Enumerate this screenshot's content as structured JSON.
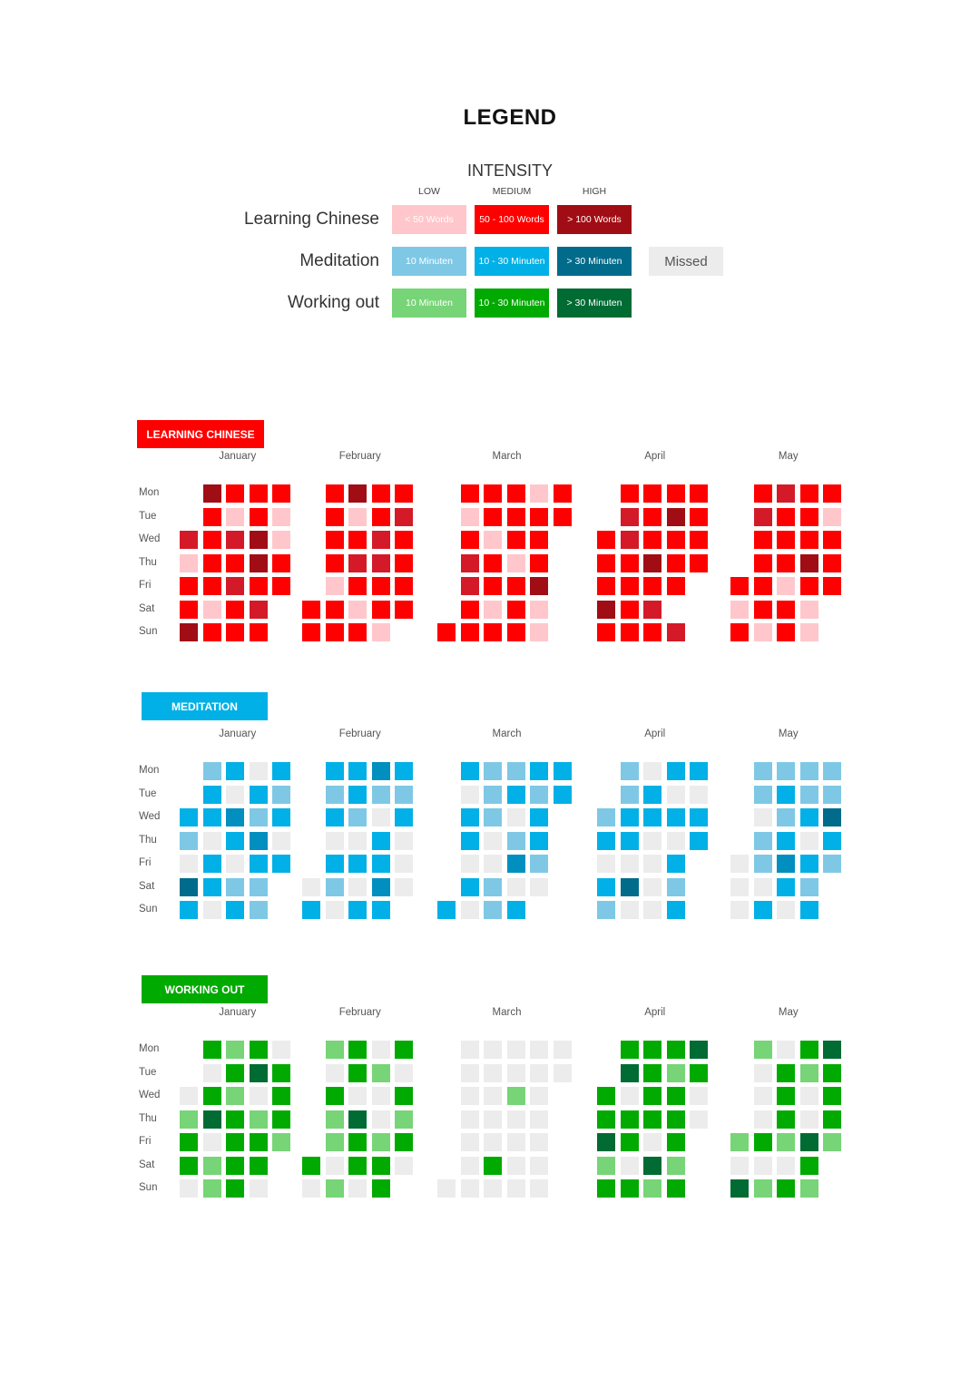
{
  "legend": {
    "title": "LEGEND",
    "intensity_title": "INTENSITY",
    "levels": [
      "LOW",
      "MEDIUM",
      "HIGH"
    ],
    "missed_label": "Missed",
    "missed_color": "#ececec",
    "rows": [
      {
        "label": "Learning Chinese",
        "colors": [
          "#ffc7cb",
          "#ff0000",
          "#a10d14"
        ],
        "texts": [
          "< 50 Words",
          "50 - 100 Words",
          "> 100 Words"
        ]
      },
      {
        "label": "Meditation",
        "colors": [
          "#7ec8e6",
          "#00b0e6",
          "#006b8a"
        ],
        "texts": [
          "10 Minuten",
          "10 - 30 Minuten",
          "> 30 Minuten"
        ]
      },
      {
        "label": "Working out",
        "colors": [
          "#77d477",
          "#00aa00",
          "#006b33"
        ],
        "texts": [
          "10 Minuten",
          "10 - 30 Minuten",
          "> 30 Minuten"
        ]
      }
    ]
  },
  "chart_data": {
    "type": "heatmap",
    "months": [
      "January",
      "February",
      "March",
      "April",
      "May"
    ],
    "days": [
      "Mon",
      "Tue",
      "Wed",
      "Thu",
      "Fri",
      "Sat",
      "Sun"
    ],
    "intensity_scale": {
      "0": "Missed",
      "1": "LOW",
      "2": "MEDIUM",
      "3": "HIGH"
    },
    "sections": [
      {
        "title": "LEARNING CHINESE",
        "colors": [
          "#ececec",
          "#ffc7cb",
          "#ff0000",
          "#a10d14"
        ],
        "mid_color": "#d41a28",
        "months": [
          {
            "month": "January",
            "weeks": [
              [
                null,
                null,
                2.5,
                1,
                2,
                2,
                3
              ],
              [
                3,
                2,
                2,
                2,
                2,
                1,
                2
              ],
              [
                2,
                1,
                2.5,
                2,
                2.5,
                2,
                2
              ],
              [
                2,
                2,
                3,
                3,
                2,
                2.5,
                2
              ],
              [
                2,
                1,
                1,
                2,
                2,
                null,
                null
              ]
            ]
          },
          {
            "month": "February",
            "weeks": [
              [
                null,
                null,
                null,
                null,
                null,
                2,
                2
              ],
              [
                2,
                2,
                2,
                2,
                1,
                2,
                2
              ],
              [
                3,
                1,
                2,
                2.5,
                2,
                1,
                2
              ],
              [
                2,
                2,
                2.5,
                2.5,
                2,
                2,
                1
              ],
              [
                2,
                2.5,
                2,
                2,
                2,
                2,
                null
              ]
            ]
          },
          {
            "month": "March",
            "weeks": [
              [
                null,
                null,
                null,
                null,
                null,
                null,
                2
              ],
              [
                2,
                1,
                2,
                2.5,
                2.5,
                2,
                2
              ],
              [
                2,
                2,
                1,
                2,
                2,
                1,
                2
              ],
              [
                2,
                2,
                2,
                1,
                2,
                2,
                2
              ],
              [
                1,
                2,
                2,
                2,
                3,
                1,
                1
              ],
              [
                2,
                2,
                null,
                null,
                null,
                null,
                null
              ]
            ]
          },
          {
            "month": "April",
            "weeks": [
              [
                null,
                null,
                2,
                2,
                2,
                3,
                2
              ],
              [
                2,
                2.5,
                2.5,
                2,
                2,
                2,
                2
              ],
              [
                2,
                2,
                2,
                3,
                2,
                2.5,
                2
              ],
              [
                2,
                3,
                2,
                2,
                2,
                null,
                2.5
              ],
              [
                2,
                2,
                2,
                2,
                null,
                null,
                null
              ]
            ]
          },
          {
            "month": "May",
            "weeks": [
              [
                null,
                null,
                null,
                null,
                2,
                1,
                2
              ],
              [
                2,
                2.5,
                2,
                2,
                2,
                2,
                1
              ],
              [
                2.5,
                2,
                2,
                2,
                1,
                2,
                2
              ],
              [
                2,
                2,
                2,
                3,
                2,
                1,
                1
              ],
              [
                2,
                1,
                2,
                2,
                2,
                null,
                null
              ]
            ]
          }
        ]
      },
      {
        "title": "MEDITATION",
        "colors": [
          "#ececec",
          "#7ec8e6",
          "#00b0e6",
          "#006b8a"
        ],
        "mid_color": "#008fbf",
        "months": [
          {
            "month": "January",
            "weeks": [
              [
                null,
                null,
                2,
                1,
                0,
                3,
                2
              ],
              [
                1,
                2,
                2,
                0,
                2,
                2,
                0
              ],
              [
                2,
                0,
                2.5,
                2,
                0,
                1,
                2
              ],
              [
                0,
                2,
                1,
                2.5,
                2,
                1,
                1
              ],
              [
                2,
                1,
                2,
                0,
                2,
                null,
                null
              ]
            ]
          },
          {
            "month": "February",
            "weeks": [
              [
                null,
                null,
                null,
                null,
                null,
                0,
                2
              ],
              [
                2,
                1,
                2,
                0,
                2,
                1,
                0
              ],
              [
                2,
                2,
                1,
                0,
                2,
                0,
                2
              ],
              [
                2.5,
                1,
                0,
                2,
                2,
                2.5,
                2
              ],
              [
                2,
                1,
                2,
                0,
                0,
                0,
                null
              ]
            ]
          },
          {
            "month": "March",
            "weeks": [
              [
                null,
                null,
                null,
                null,
                null,
                null,
                2
              ],
              [
                2,
                0,
                2,
                2,
                0,
                2,
                0
              ],
              [
                1,
                1,
                1,
                0,
                0,
                1,
                1
              ],
              [
                1,
                2,
                0,
                1,
                2.5,
                0,
                2
              ],
              [
                2,
                1,
                2,
                2,
                1,
                0,
                null
              ],
              [
                2,
                2,
                null,
                null,
                null,
                null,
                null
              ]
            ]
          },
          {
            "month": "April",
            "weeks": [
              [
                null,
                null,
                1,
                2,
                0,
                2,
                1
              ],
              [
                1,
                1,
                2,
                2,
                0,
                3,
                0
              ],
              [
                0,
                2,
                2,
                0,
                0,
                0,
                0
              ],
              [
                2,
                0,
                2,
                0,
                2,
                1,
                2
              ],
              [
                2,
                0,
                2,
                2,
                null,
                null,
                null
              ]
            ]
          },
          {
            "month": "May",
            "weeks": [
              [
                null,
                null,
                null,
                null,
                0,
                0,
                0
              ],
              [
                1,
                1,
                0,
                1,
                1,
                0,
                2
              ],
              [
                1,
                2,
                1,
                2,
                2.5,
                2,
                0
              ],
              [
                1,
                1,
                2,
                0,
                2,
                1,
                2
              ],
              [
                1,
                1,
                3,
                2,
                1,
                null,
                null
              ]
            ]
          }
        ]
      },
      {
        "title": "WORKING OUT",
        "colors": [
          "#ececec",
          "#77d477",
          "#00aa00",
          "#006b33"
        ],
        "mid_color": "#00882a",
        "months": [
          {
            "month": "January",
            "weeks": [
              [
                null,
                null,
                0,
                1,
                2,
                2,
                0
              ],
              [
                2,
                0,
                2,
                3,
                0,
                1,
                1
              ],
              [
                1,
                2,
                1,
                2,
                2,
                2,
                2
              ],
              [
                2,
                3,
                0,
                1,
                2,
                2,
                0
              ],
              [
                0,
                2,
                2,
                2,
                1,
                null,
                null
              ]
            ]
          },
          {
            "month": "February",
            "weeks": [
              [
                null,
                null,
                null,
                null,
                null,
                2,
                0
              ],
              [
                1,
                0,
                2,
                1,
                1,
                0,
                1
              ],
              [
                2,
                2,
                0,
                3,
                2,
                2,
                0
              ],
              [
                0,
                1,
                0,
                0,
                1,
                2,
                2
              ],
              [
                2,
                0,
                2,
                1,
                2,
                0,
                null
              ]
            ]
          },
          {
            "month": "March",
            "weeks": [
              [
                null,
                null,
                null,
                null,
                null,
                null,
                0
              ],
              [
                0,
                0,
                0,
                0,
                0,
                0,
                0
              ],
              [
                0,
                0,
                0,
                0,
                0,
                2,
                0
              ],
              [
                0,
                0,
                1,
                0,
                0,
                0,
                0
              ],
              [
                0,
                0,
                0,
                0,
                0,
                0,
                0
              ],
              [
                0,
                0,
                null,
                null,
                null,
                null,
                null
              ]
            ]
          },
          {
            "month": "April",
            "weeks": [
              [
                null,
                null,
                2,
                2,
                3,
                1,
                2
              ],
              [
                2,
                3,
                0,
                2,
                2,
                0,
                2
              ],
              [
                2,
                2,
                2,
                2,
                0,
                3,
                1
              ],
              [
                2,
                1,
                2,
                2,
                2,
                1,
                2
              ],
              [
                3,
                2,
                0,
                0,
                null,
                null,
                null
              ]
            ]
          },
          {
            "month": "May",
            "weeks": [
              [
                null,
                null,
                null,
                null,
                1,
                0,
                3
              ],
              [
                1,
                0,
                0,
                0,
                2,
                0,
                1
              ],
              [
                0,
                2,
                2,
                2,
                1,
                0,
                2
              ],
              [
                2,
                1,
                0,
                0,
                3,
                2,
                1
              ],
              [
                3,
                2,
                2,
                2,
                1,
                null,
                null
              ]
            ]
          }
        ]
      }
    ]
  }
}
